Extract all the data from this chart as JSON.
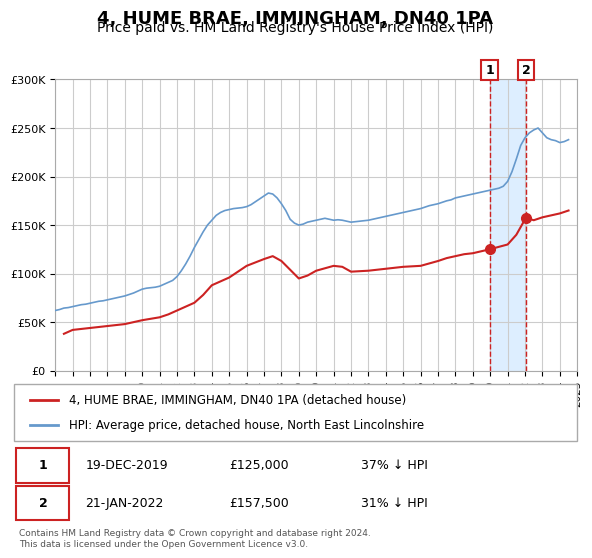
{
  "title": "4, HUME BRAE, IMMINGHAM, DN40 1PA",
  "subtitle": "Price paid vs. HM Land Registry's House Price Index (HPI)",
  "title_fontsize": 13,
  "subtitle_fontsize": 10,
  "background_color": "#ffffff",
  "plot_bg_color": "#ffffff",
  "grid_color": "#cccccc",
  "xmin": 1995,
  "xmax": 2025,
  "ymin": 0,
  "ymax": 300000,
  "yticks": [
    0,
    50000,
    100000,
    150000,
    200000,
    250000,
    300000
  ],
  "ytick_labels": [
    "£0",
    "£50K",
    "£100K",
    "£150K",
    "£200K",
    "£250K",
    "£300K"
  ],
  "xticks": [
    1995,
    1996,
    1997,
    1998,
    1999,
    2000,
    2001,
    2002,
    2003,
    2004,
    2005,
    2006,
    2007,
    2008,
    2009,
    2010,
    2011,
    2012,
    2013,
    2014,
    2015,
    2016,
    2017,
    2018,
    2019,
    2020,
    2021,
    2022,
    2023,
    2024,
    2025
  ],
  "hpi_color": "#6699cc",
  "price_color": "#cc2222",
  "marker_color": "#cc2222",
  "shade_color": "#ddeeff",
  "vline_color": "#cc2222",
  "sale1_x": 2019.96,
  "sale1_y": 125000,
  "sale2_x": 2022.05,
  "sale2_y": 157500,
  "legend_label_price": "4, HUME BRAE, IMMINGHAM, DN40 1PA (detached house)",
  "legend_label_hpi": "HPI: Average price, detached house, North East Lincolnshire",
  "annotation1_label": "1",
  "annotation2_label": "2",
  "table_row1": [
    "1",
    "19-DEC-2019",
    "£125,000",
    "37% ↓ HPI"
  ],
  "table_row2": [
    "2",
    "21-JAN-2022",
    "£157,500",
    "31% ↓ HPI"
  ],
  "footer": "Contains HM Land Registry data © Crown copyright and database right 2024.\nThis data is licensed under the Open Government Licence v3.0.",
  "hpi_data_x": [
    1995.0,
    1995.25,
    1995.5,
    1995.75,
    1996.0,
    1996.25,
    1996.5,
    1996.75,
    1997.0,
    1997.25,
    1997.5,
    1997.75,
    1998.0,
    1998.25,
    1998.5,
    1998.75,
    1999.0,
    1999.25,
    1999.5,
    1999.75,
    2000.0,
    2000.25,
    2000.5,
    2000.75,
    2001.0,
    2001.25,
    2001.5,
    2001.75,
    2002.0,
    2002.25,
    2002.5,
    2002.75,
    2003.0,
    2003.25,
    2003.5,
    2003.75,
    2004.0,
    2004.25,
    2004.5,
    2004.75,
    2005.0,
    2005.25,
    2005.5,
    2005.75,
    2006.0,
    2006.25,
    2006.5,
    2006.75,
    2007.0,
    2007.25,
    2007.5,
    2007.75,
    2008.0,
    2008.25,
    2008.5,
    2008.75,
    2009.0,
    2009.25,
    2009.5,
    2009.75,
    2010.0,
    2010.25,
    2010.5,
    2010.75,
    2011.0,
    2011.25,
    2011.5,
    2011.75,
    2012.0,
    2012.25,
    2012.5,
    2012.75,
    2013.0,
    2013.25,
    2013.5,
    2013.75,
    2014.0,
    2014.25,
    2014.5,
    2014.75,
    2015.0,
    2015.25,
    2015.5,
    2015.75,
    2016.0,
    2016.25,
    2016.5,
    2016.75,
    2017.0,
    2017.25,
    2017.5,
    2017.75,
    2018.0,
    2018.25,
    2018.5,
    2018.75,
    2019.0,
    2019.25,
    2019.5,
    2019.75,
    2020.0,
    2020.25,
    2020.5,
    2020.75,
    2021.0,
    2021.25,
    2021.5,
    2021.75,
    2022.0,
    2022.25,
    2022.5,
    2022.75,
    2023.0,
    2023.25,
    2023.5,
    2023.75,
    2024.0,
    2024.25,
    2024.5
  ],
  "hpi_data_y": [
    62000,
    63000,
    64500,
    65000,
    66000,
    67000,
    68000,
    68500,
    69500,
    70500,
    71500,
    72000,
    73000,
    74000,
    75000,
    76000,
    77000,
    78500,
    80000,
    82000,
    84000,
    85000,
    85500,
    86000,
    87000,
    89000,
    91000,
    93000,
    97000,
    103000,
    110000,
    118000,
    127000,
    135000,
    143000,
    150000,
    155000,
    160000,
    163000,
    165000,
    166000,
    167000,
    167500,
    168000,
    169000,
    171000,
    174000,
    177000,
    180000,
    183000,
    182000,
    178000,
    172000,
    165000,
    156000,
    152000,
    150000,
    151000,
    153000,
    154000,
    155000,
    156000,
    157000,
    156000,
    155000,
    155500,
    155000,
    154000,
    153000,
    153500,
    154000,
    154500,
    155000,
    156000,
    157000,
    158000,
    159000,
    160000,
    161000,
    162000,
    163000,
    164000,
    165000,
    166000,
    167000,
    168500,
    170000,
    171000,
    172000,
    173500,
    175000,
    176000,
    178000,
    179000,
    180000,
    181000,
    182000,
    183000,
    184000,
    185000,
    186000,
    187000,
    188000,
    190000,
    195000,
    205000,
    218000,
    232000,
    240000,
    245000,
    248000,
    250000,
    245000,
    240000,
    238000,
    237000,
    235000,
    236000,
    238000
  ],
  "price_data_x": [
    1995.5,
    1996.0,
    1997.0,
    1998.0,
    1998.5,
    1999.0,
    1999.5,
    2000.0,
    2001.0,
    2001.5,
    2002.0,
    2003.0,
    2003.5,
    2004.0,
    2005.0,
    2005.5,
    2006.0,
    2007.0,
    2007.5,
    2008.0,
    2009.0,
    2009.5,
    2010.0,
    2011.0,
    2011.5,
    2012.0,
    2013.0,
    2014.0,
    2015.0,
    2016.0,
    2017.0,
    2017.5,
    2018.0,
    2018.5,
    2019.0,
    2019.96,
    2021.0,
    2021.5,
    2022.05,
    2022.5,
    2023.0,
    2023.5,
    2024.0,
    2024.5
  ],
  "price_data_y": [
    38000,
    42000,
    44000,
    46000,
    47000,
    48000,
    50000,
    52000,
    55000,
    58000,
    62000,
    70000,
    78000,
    88000,
    96000,
    102000,
    108000,
    115000,
    118000,
    113000,
    95000,
    98000,
    103000,
    108000,
    107000,
    102000,
    103000,
    105000,
    107000,
    108000,
    113000,
    116000,
    118000,
    120000,
    121000,
    125000,
    130000,
    140000,
    157500,
    155000,
    158000,
    160000,
    162000,
    165000
  ]
}
